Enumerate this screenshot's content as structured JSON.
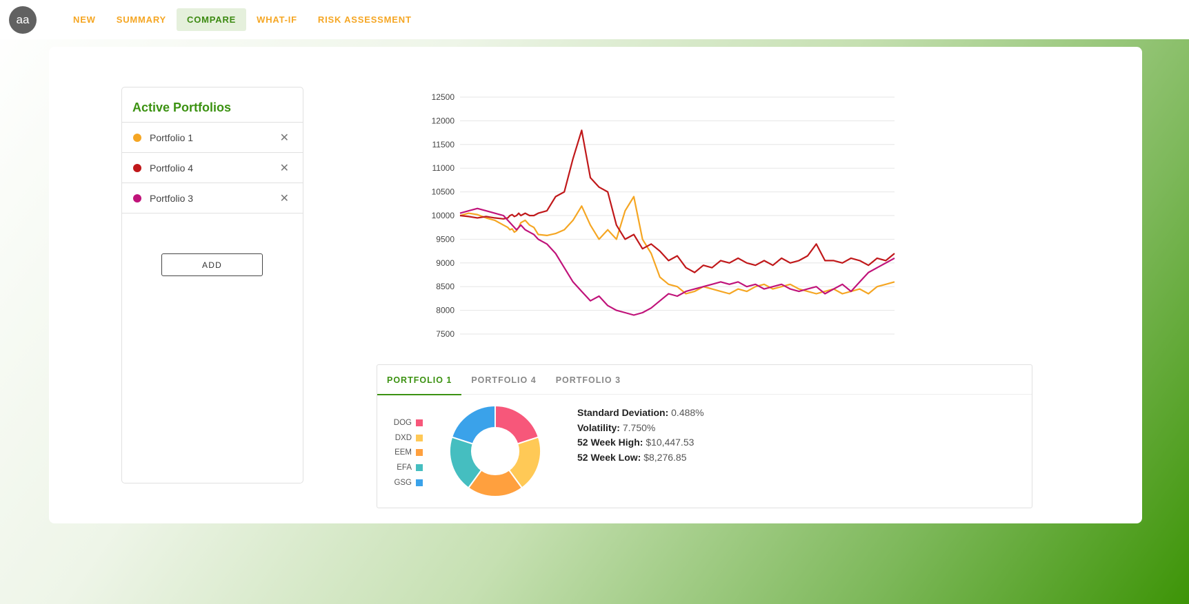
{
  "user": {
    "initials": "aa"
  },
  "nav": {
    "items": [
      {
        "label": "NEW",
        "active": false
      },
      {
        "label": "SUMMARY",
        "active": false
      },
      {
        "label": "COMPARE",
        "active": true
      },
      {
        "label": "WHAT-IF",
        "active": false
      },
      {
        "label": "RISK ASSESSMENT",
        "active": false
      }
    ]
  },
  "portfolios": {
    "title": "Active Portfolios",
    "items": [
      {
        "name": "Portfolio 1",
        "color": "#f5a623"
      },
      {
        "name": "Portfolio 4",
        "color": "#c0181a"
      },
      {
        "name": "Portfolio 3",
        "color": "#c0137a"
      }
    ],
    "add_label": "ADD"
  },
  "chart_data": [
    {
      "type": "line",
      "title": "",
      "xlabel": "",
      "ylabel": "",
      "ylim": [
        7500,
        12500
      ],
      "yticks": [
        7500,
        8000,
        8500,
        9000,
        9500,
        10000,
        10500,
        11000,
        11500,
        12000,
        12500
      ],
      "grid": true,
      "x": [
        0,
        20,
        40,
        60,
        80,
        100,
        110,
        115,
        120,
        125,
        130,
        135,
        140,
        150,
        160,
        170,
        180,
        200,
        220,
        240,
        260,
        280,
        300,
        320,
        340,
        360,
        380,
        400,
        420,
        440,
        460,
        480,
        500,
        520,
        540,
        560,
        580,
        600,
        620,
        640,
        660,
        680,
        700,
        720,
        740,
        760,
        780,
        800,
        820,
        840,
        860,
        880,
        900,
        920,
        940,
        960,
        980,
        1000
      ],
      "series": [
        {
          "name": "Portfolio 1",
          "color": "#f5a623",
          "values": [
            10000,
            10050,
            10020,
            9950,
            9900,
            9800,
            9750,
            9700,
            9720,
            9650,
            9680,
            9750,
            9850,
            9900,
            9800,
            9750,
            9600,
            9580,
            9620,
            9700,
            9900,
            10200,
            9800,
            9500,
            9700,
            9500,
            10100,
            10400,
            9500,
            9200,
            8700,
            8550,
            8500,
            8350,
            8400,
            8500,
            8450,
            8400,
            8350,
            8450,
            8400,
            8500,
            8550,
            8450,
            8500,
            8550,
            8450,
            8400,
            8350,
            8400,
            8450,
            8350,
            8400,
            8450,
            8350,
            8500,
            8550,
            8600
          ]
        },
        {
          "name": "Portfolio 4",
          "color": "#c0181a",
          "values": [
            10000,
            9980,
            9950,
            9980,
            9950,
            9930,
            9950,
            10000,
            10020,
            9980,
            10000,
            10050,
            10000,
            10050,
            10000,
            10000,
            10050,
            10100,
            10400,
            10500,
            11200,
            11800,
            10800,
            10600,
            10500,
            9800,
            9500,
            9600,
            9300,
            9400,
            9250,
            9050,
            9150,
            8900,
            8800,
            8950,
            8900,
            9050,
            9000,
            9100,
            9000,
            8950,
            9050,
            8950,
            9100,
            9000,
            9050,
            9150,
            9400,
            9050,
            9050,
            9000,
            9100,
            9050,
            8950,
            9100,
            9050,
            9200
          ]
        },
        {
          "name": "Portfolio 3",
          "color": "#c0137a",
          "values": [
            10050,
            10100,
            10150,
            10100,
            10050,
            10000,
            9900,
            9850,
            9800,
            9750,
            9700,
            9750,
            9800,
            9700,
            9650,
            9600,
            9500,
            9400,
            9200,
            8900,
            8600,
            8400,
            8200,
            8300,
            8100,
            8000,
            7950,
            7900,
            7950,
            8050,
            8200,
            8350,
            8300,
            8400,
            8450,
            8500,
            8550,
            8600,
            8550,
            8600,
            8500,
            8550,
            8450,
            8500,
            8550,
            8450,
            8400,
            8450,
            8500,
            8350,
            8450,
            8550,
            8400,
            8600,
            8800,
            8900,
            9000,
            9100
          ]
        }
      ]
    },
    {
      "type": "pie",
      "title": "",
      "categories": [
        "DOG",
        "DXD",
        "EEM",
        "EFA",
        "GSG"
      ],
      "values": [
        20,
        20,
        20,
        20,
        20
      ],
      "colors": [
        "#f7577a",
        "#ffc956",
        "#ffa03e",
        "#45bec0",
        "#3aa2ea"
      ],
      "legend": "left"
    }
  ],
  "detail": {
    "tabs": [
      {
        "label": "PORTFOLIO 1",
        "active": true
      },
      {
        "label": "PORTFOLIO 4",
        "active": false
      },
      {
        "label": "PORTFOLIO 3",
        "active": false
      }
    ],
    "stats": [
      {
        "label": "Standard Deviation:",
        "value": "0.488%"
      },
      {
        "label": "Volatility:",
        "value": "7.750%"
      },
      {
        "label": "52 Week High:",
        "value": "$10,447.53"
      },
      {
        "label": "52 Week Low:",
        "value": "$8,276.85"
      }
    ]
  }
}
